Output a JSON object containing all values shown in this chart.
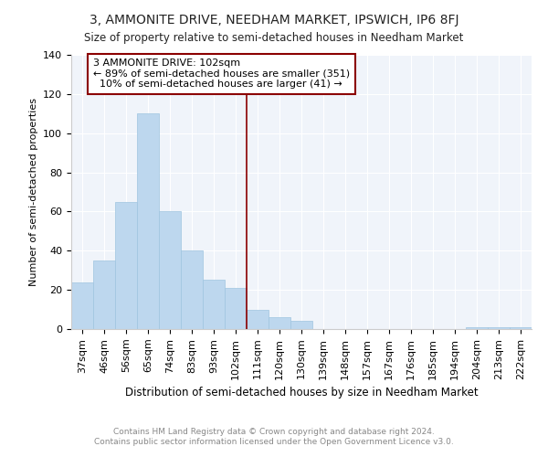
{
  "title": "3, AMMONITE DRIVE, NEEDHAM MARKET, IPSWICH, IP6 8FJ",
  "subtitle": "Size of property relative to semi-detached houses in Needham Market",
  "xlabel": "Distribution of semi-detached houses by size in Needham Market",
  "ylabel": "Number of semi-detached properties",
  "footnote1": "Contains HM Land Registry data © Crown copyright and database right 2024.",
  "footnote2": "Contains public sector information licensed under the Open Government Licence v3.0.",
  "annotation_title": "3 AMMONITE DRIVE: 102sqm",
  "annotation_line1": "← 89% of semi-detached houses are smaller (351)",
  "annotation_line2": "10% of semi-detached houses are larger (41) →",
  "categories": [
    "37sqm",
    "46sqm",
    "56sqm",
    "65sqm",
    "74sqm",
    "83sqm",
    "93sqm",
    "102sqm",
    "111sqm",
    "120sqm",
    "130sqm",
    "139sqm",
    "148sqm",
    "157sqm",
    "167sqm",
    "176sqm",
    "185sqm",
    "194sqm",
    "204sqm",
    "213sqm",
    "222sqm"
  ],
  "values": [
    24,
    35,
    65,
    110,
    60,
    40,
    25,
    21,
    10,
    6,
    4,
    0,
    0,
    0,
    0,
    0,
    0,
    0,
    1,
    1,
    1
  ],
  "vline_index": 7,
  "bar_color": "#bdd7ee",
  "bar_edgecolor": "#9ec4e0",
  "vline_color": "#8b0000",
  "annotation_box_color": "#8b0000",
  "ylim": [
    0,
    140
  ],
  "yticks": [
    0,
    20,
    40,
    60,
    80,
    100,
    120,
    140
  ],
  "title_fontsize": 10,
  "subtitle_fontsize": 8.5,
  "xlabel_fontsize": 8.5,
  "ylabel_fontsize": 8,
  "tick_fontsize": 8,
  "annotation_fontsize": 8
}
